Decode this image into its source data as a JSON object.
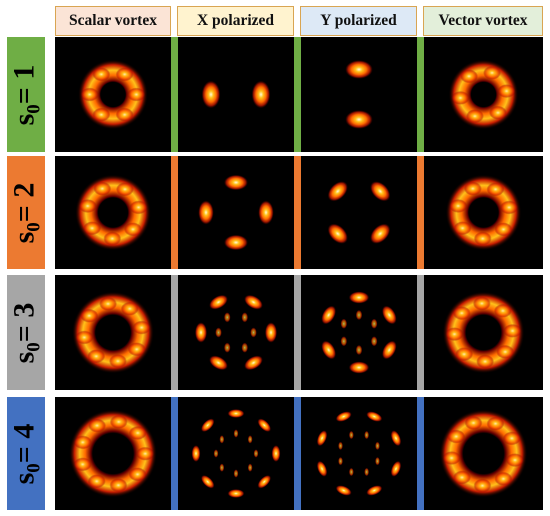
{
  "columns": [
    {
      "label": "Scalar vortex",
      "bg": "#fbe4d6"
    },
    {
      "label": "X polarized",
      "bg": "#fff3cf"
    },
    {
      "label": "Y polarized",
      "bg": "#dde9f6"
    },
    {
      "label": "Vector vortex",
      "bg": "#e3efda"
    }
  ],
  "rows": [
    {
      "sym": "s",
      "sub": "0",
      "eq": "= 1",
      "color": "#6fae45",
      "value": 1
    },
    {
      "sym": "s",
      "sub": "0",
      "eq": "= 2",
      "color": "#ec7a31",
      "value": 2
    },
    {
      "sym": "s",
      "sub": "0",
      "eq": "= 3",
      "color": "#a6a6a6",
      "value": 3
    },
    {
      "sym": "s",
      "sub": "0",
      "eq": "= 4",
      "color": "#4371c1",
      "value": 4
    }
  ],
  "colormap": [
    "#000000",
    "#6a0000",
    "#c81c00",
    "#ff6a00",
    "#ffc21a",
    "#fffbe0"
  ]
}
